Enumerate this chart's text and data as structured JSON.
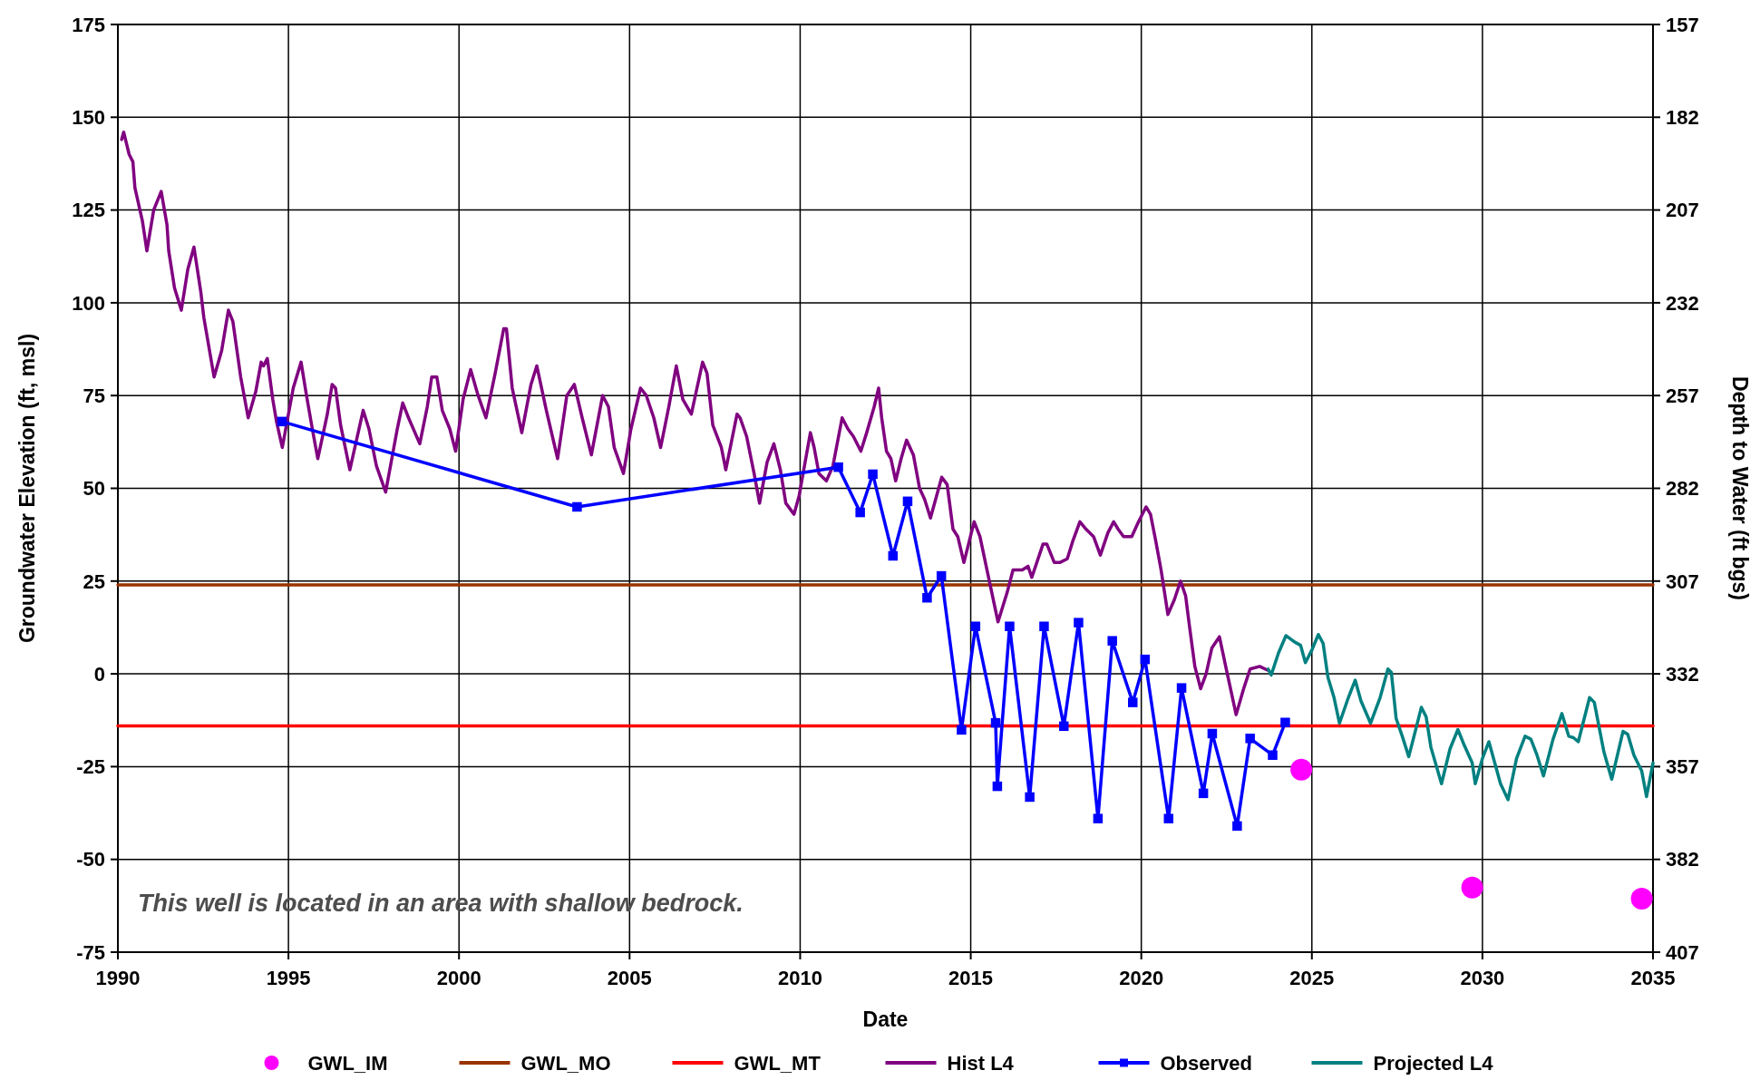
{
  "chart_data": {
    "type": "line",
    "xlabel": "Date",
    "ylabel": "Groundwater Elevation (ft, msl)",
    "y2label": "Depth to Water (ft bgs)",
    "xlim": [
      1990,
      2035
    ],
    "xticks": [
      1990,
      1995,
      2000,
      2005,
      2010,
      2015,
      2020,
      2025,
      2030,
      2035
    ],
    "ylim": [
      -75,
      175
    ],
    "yticks": [
      -75,
      -50,
      -25,
      0,
      25,
      50,
      75,
      100,
      125,
      150,
      175
    ],
    "y2lim": [
      407,
      157
    ],
    "y2ticks": [
      407,
      382,
      357,
      332,
      307,
      282,
      257,
      232,
      207,
      182,
      157
    ],
    "grid": true,
    "legend": "bottom",
    "annotations": [
      "This well is located in an area with shallow bedrock."
    ],
    "series": [
      {
        "name": "GWL_IM",
        "type": "scatter",
        "marker": "circle",
        "color": "#ff00ff",
        "x": [
          2024.69,
          2029.7,
          2034.67
        ],
        "values": [
          -25.8,
          -57.6,
          -60.6
        ]
      },
      {
        "name": "GWL_MO",
        "marker": "none",
        "color": "#993300",
        "x": [
          1990,
          2035
        ],
        "values": [
          24,
          24
        ]
      },
      {
        "name": "GWL_MT",
        "marker": "none",
        "color": "#ff0000",
        "x": [
          1990,
          2035
        ],
        "values": [
          -14,
          -14
        ]
      },
      {
        "name": "Hist L4",
        "marker": "none",
        "color": "#800080",
        "x": [
          1990.11,
          1990.17,
          1990.33,
          1990.44,
          1990.5,
          1990.72,
          1990.85,
          1991.05,
          1991.27,
          1991.44,
          1991.49,
          1991.66,
          1991.86,
          1992.05,
          1992.23,
          1992.43,
          1992.52,
          1992.82,
          1993.04,
          1993.24,
          1993.37,
          1993.6,
          1993.82,
          1994.04,
          1994.2,
          1994.27,
          1994.38,
          1994.54,
          1994.65,
          1994.82,
          1995.14,
          1995.37,
          1995.53,
          1995.7,
          1995.86,
          1996.14,
          1996.28,
          1996.38,
          1996.53,
          1996.8,
          1997.02,
          1997.19,
          1997.36,
          1997.58,
          1997.85,
          1998.19,
          1998.35,
          1998.52,
          1998.85,
          1999.07,
          1999.2,
          1999.35,
          1999.51,
          1999.73,
          1999.9,
          2000.12,
          2000.34,
          2000.56,
          2000.79,
          2001.06,
          2001.31,
          2001.39,
          2001.56,
          2001.84,
          2002.11,
          2002.28,
          2002.56,
          2002.89,
          2003.16,
          2003.38,
          2003.61,
          2003.88,
          2004.21,
          2004.38,
          2004.55,
          2004.82,
          2005.04,
          2005.32,
          2005.49,
          2005.71,
          2005.91,
          2006.15,
          2006.37,
          2006.56,
          2006.81,
          2007.14,
          2007.27,
          2007.44,
          2007.69,
          2007.82,
          2008.15,
          2008.24,
          2008.43,
          2008.65,
          2008.81,
          2009.03,
          2009.23,
          2009.42,
          2009.58,
          2009.82,
          2009.97,
          2010.3,
          2010.41,
          2010.55,
          2010.77,
          2010.96,
          2011.23,
          2011.4,
          2011.56,
          2011.78,
          2011.95,
          2012.17,
          2012.3,
          2012.39,
          2012.53,
          2012.66,
          2012.8,
          2012.96,
          2013.12,
          2013.32,
          2013.5,
          2013.65,
          2013.82,
          2014.15,
          2014.31,
          2014.48,
          2014.62,
          2014.8,
          2015.1,
          2015.27,
          2015.5,
          2015.8,
          2016.07,
          2016.24,
          2016.35,
          2016.51,
          2016.68,
          2016.79,
          2017.12,
          2017.23,
          2017.45,
          2017.61,
          2017.83,
          2018.0,
          2018.2,
          2018.38,
          2018.6,
          2018.8,
          2019.02,
          2019.19,
          2019.32,
          2019.48,
          2019.72,
          2019.92,
          2020.14,
          2020.27,
          2020.42,
          2020.58,
          2020.78,
          2020.97,
          2021.15,
          2021.3,
          2021.41,
          2021.57,
          2021.74,
          2021.9,
          2022.07,
          2022.29,
          2022.51,
          2022.78,
          2023.0,
          2023.19,
          2023.47,
          2023.7
        ],
        "values": [
          144,
          146,
          140,
          138,
          131,
          122,
          114,
          125,
          130,
          121,
          114,
          104,
          98,
          109,
          115,
          103,
          96,
          80,
          87,
          98,
          95,
          80,
          69,
          76,
          84,
          83,
          85,
          74,
          68,
          61,
          77,
          84,
          75,
          66,
          58,
          70,
          78,
          77,
          67,
          55,
          64,
          71,
          66,
          56,
          49,
          66,
          73,
          69,
          62,
          72,
          80,
          80,
          71,
          66,
          60,
          74,
          82,
          75,
          69,
          81,
          93,
          93,
          77,
          65,
          78,
          83,
          71,
          58,
          75,
          78,
          69,
          59,
          75,
          72,
          61,
          54,
          66,
          77,
          75,
          69,
          61,
          72,
          83,
          74,
          70,
          84,
          81,
          67,
          61,
          55,
          70,
          69,
          64,
          54,
          46,
          57,
          62,
          55,
          46,
          43,
          48,
          65,
          61,
          54,
          52,
          56,
          69,
          66,
          64,
          60,
          65,
          72,
          77,
          69,
          60,
          58,
          52,
          58,
          63,
          59,
          50,
          47,
          42,
          53,
          51,
          39,
          37,
          30,
          41,
          37,
          27,
          14,
          22,
          28,
          28,
          28,
          29,
          26,
          35,
          35,
          30,
          30,
          31,
          36,
          41,
          39,
          37,
          32,
          38,
          41,
          39,
          37,
          37,
          41,
          45,
          43,
          36,
          28,
          16,
          20,
          25,
          21,
          13,
          2,
          -4,
          0,
          7,
          10,
          0.5,
          -11,
          -4,
          1.3,
          2,
          1
        ]
      },
      {
        "name": "Observed",
        "marker": "square",
        "color": "#0000ff",
        "x": [
          1994.81,
          2003.46,
          2011.12,
          2011.76,
          2012.13,
          2012.72,
          2013.15,
          2013.72,
          2014.14,
          2014.73,
          2015.14,
          2015.73,
          2015.78,
          2016.14,
          2016.73,
          2017.15,
          2017.73,
          2018.16,
          2018.73,
          2019.15,
          2019.75,
          2020.11,
          2020.8,
          2021.18,
          2021.82,
          2022.08,
          2022.81,
          2023.19,
          2023.85,
          2024.22
        ],
        "values": [
          68,
          45,
          55.7,
          43.5,
          53.8,
          31.8,
          46.5,
          20.5,
          26.4,
          -15.1,
          12.8,
          -13.2,
          -30.3,
          12.8,
          -33.2,
          12.8,
          -14.1,
          13.8,
          -39,
          8.9,
          -7.7,
          3.9,
          -39,
          -3.8,
          -32.2,
          -16.1,
          -41,
          -17.4,
          -21.9,
          -13.1
        ]
      },
      {
        "name": "Projected L4",
        "marker": "none",
        "color": "#008080",
        "x": [
          2023.72,
          2023.81,
          2024.02,
          2024.24,
          2024.49,
          2024.67,
          2024.81,
          2025.0,
          2025.19,
          2025.33,
          2025.47,
          2025.65,
          2025.81,
          2026.07,
          2026.27,
          2026.44,
          2026.72,
          2027.0,
          2027.23,
          2027.33,
          2027.47,
          2027.65,
          2027.84,
          2028.02,
          2028.21,
          2028.35,
          2028.49,
          2028.8,
          2029.05,
          2029.28,
          2029.47,
          2029.7,
          2029.79,
          2030.0,
          2030.19,
          2030.35,
          2030.53,
          2030.75,
          2031.0,
          2031.25,
          2031.42,
          2031.6,
          2031.79,
          2032.07,
          2032.33,
          2032.53,
          2032.67,
          2032.81,
          2033.14,
          2033.28,
          2033.56,
          2033.79,
          2034.12,
          2034.26,
          2034.44,
          2034.67,
          2034.81,
          2035.0
        ],
        "values": [
          1.3,
          -0.3,
          5.6,
          10.3,
          8.6,
          7.7,
          3,
          6.4,
          10.6,
          8.2,
          -0.9,
          -6.4,
          -13.3,
          -6.4,
          -1.7,
          -7.3,
          -13.3,
          -6.4,
          1.3,
          0.4,
          -12,
          -16.8,
          -22.3,
          -15.9,
          -9,
          -11.6,
          -19.8,
          -29.6,
          -20.2,
          -15,
          -19.3,
          -24,
          -29.6,
          -22.8,
          -18.3,
          -23.6,
          -29.6,
          -33.9,
          -22.8,
          -16.8,
          -17.6,
          -21.9,
          -27.5,
          -17.6,
          -10.7,
          -16.8,
          -17.2,
          -18.3,
          -6.4,
          -7.7,
          -21,
          -28.4,
          -15.5,
          -16.3,
          -21.9,
          -26.2,
          -33.1,
          -24
        ]
      }
    ]
  }
}
